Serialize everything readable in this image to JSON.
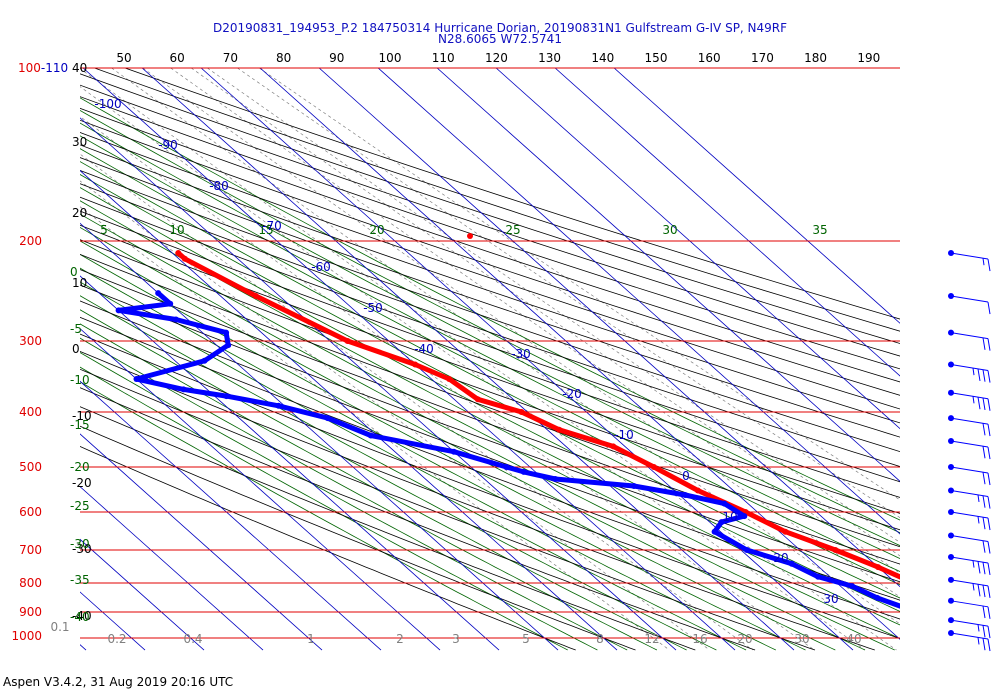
{
  "header": {
    "line1": "D20190831_194953_P.2 184750314 Hurricane Dorian, 20190831N1 Gulfstream G-IV SP, N49RF",
    "line2": "N28.6065 W72.5741"
  },
  "footer": {
    "text": "Aspen V3.4.2, 31 Aug 2019  20:16 UTC"
  },
  "colors": {
    "isobar": "#e00000",
    "isotherm": "#0000c0",
    "dry_adiabat": "#000000",
    "moist_adiabat": "#006400",
    "mixing_ratio": "#808080",
    "temperature": "#ff0000",
    "dewpoint": "#0000ff"
  },
  "chart_data": {
    "type": "skew-t",
    "pressure_levels": [
      100,
      200,
      300,
      400,
      500,
      600,
      700,
      800,
      900,
      1000
    ],
    "pressure_tick_labels": [
      "100-110",
      "200",
      "300",
      "400",
      "500",
      "600",
      "700",
      "800",
      "900",
      "1000"
    ],
    "theta_labels": [
      "50",
      "60",
      "70",
      "80",
      "90",
      "100",
      "110",
      "120",
      "130",
      "140",
      "150",
      "160",
      "170",
      "180",
      "190"
    ],
    "isotherm_labels": [
      "-100",
      "-90",
      "-80",
      "-70",
      "-60",
      "-50",
      "-40",
      "-30",
      "-20",
      "-10",
      "0",
      "10",
      "20",
      "30"
    ],
    "theta_e_labels": [
      "5",
      "10",
      "15",
      "20",
      "25",
      "30",
      "35"
    ],
    "dry_adiabat_side_labels": [
      "40",
      "30",
      "20",
      "10",
      "0",
      "-10",
      "-20",
      "-30",
      "-40"
    ],
    "moist_adiabat_side_labels": [
      "0",
      "-5",
      "-10",
      "-15",
      "-20",
      "-25",
      "-30",
      "-35",
      "-40"
    ],
    "mixing_ratio_labels": [
      "0.1",
      "0.2",
      "0.4",
      "1",
      "2",
      "3",
      "5",
      "8",
      "12",
      "16",
      "20",
      "30",
      "40"
    ],
    "temperature_profile": [
      {
        "p": 210,
        "t": -49
      },
      {
        "p": 215,
        "t": -49
      },
      {
        "p": 250,
        "t": -44
      },
      {
        "p": 300,
        "t": -37
      },
      {
        "p": 330,
        "t": -30
      },
      {
        "p": 350,
        "t": -27
      },
      {
        "p": 380,
        "t": -26
      },
      {
        "p": 400,
        "t": -21
      },
      {
        "p": 430,
        "t": -18
      },
      {
        "p": 460,
        "t": -12
      },
      {
        "p": 500,
        "t": -9
      },
      {
        "p": 550,
        "t": -6
      },
      {
        "p": 600,
        "t": -2
      },
      {
        "p": 650,
        "t": 1
      },
      {
        "p": 700,
        "t": 6
      },
      {
        "p": 750,
        "t": 10
      },
      {
        "p": 800,
        "t": 13
      },
      {
        "p": 850,
        "t": 17
      },
      {
        "p": 900,
        "t": 20
      },
      {
        "p": 950,
        "t": 24
      },
      {
        "p": 1000,
        "t": 27
      },
      {
        "p": 1012,
        "t": 29
      }
    ],
    "dewpoint_profile": [
      {
        "p": 247,
        "td": -60
      },
      {
        "p": 258,
        "td": -60
      },
      {
        "p": 265,
        "td": -70
      },
      {
        "p": 275,
        "td": -62
      },
      {
        "p": 290,
        "td": -56
      },
      {
        "p": 305,
        "td": -58
      },
      {
        "p": 325,
        "td": -65
      },
      {
        "p": 350,
        "td": -80
      },
      {
        "p": 365,
        "td": -74
      },
      {
        "p": 375,
        "td": -68
      },
      {
        "p": 390,
        "td": -61
      },
      {
        "p": 410,
        "td": -55
      },
      {
        "p": 440,
        "td": -51
      },
      {
        "p": 470,
        "td": -40
      },
      {
        "p": 500,
        "td": -34
      },
      {
        "p": 510,
        "td": -32
      },
      {
        "p": 525,
        "td": -28
      },
      {
        "p": 540,
        "td": -16
      },
      {
        "p": 560,
        "td": -9
      },
      {
        "p": 580,
        "td": -4
      },
      {
        "p": 610,
        "td": -3
      },
      {
        "p": 625,
        "td": -8
      },
      {
        "p": 650,
        "td": -11
      },
      {
        "p": 700,
        "td": -9
      },
      {
        "p": 740,
        "td": -4
      },
      {
        "p": 780,
        "td": -2
      },
      {
        "p": 810,
        "td": 2
      },
      {
        "p": 850,
        "td": 4
      },
      {
        "p": 900,
        "td": 8
      },
      {
        "p": 950,
        "td": 13
      },
      {
        "p": 980,
        "td": 20
      },
      {
        "p": 1000,
        "td": 19
      },
      {
        "p": 1008,
        "td": 17
      }
    ],
    "wind_barbs": [
      {
        "p": 210,
        "kt": 5
      },
      {
        "p": 250,
        "kt": 10
      },
      {
        "p": 290,
        "kt": 20
      },
      {
        "p": 330,
        "kt": 25
      },
      {
        "p": 370,
        "kt": 25
      },
      {
        "p": 410,
        "kt": 20
      },
      {
        "p": 450,
        "kt": 20
      },
      {
        "p": 500,
        "kt": 20
      },
      {
        "p": 550,
        "kt": 15
      },
      {
        "p": 600,
        "kt": 15
      },
      {
        "p": 660,
        "kt": 20
      },
      {
        "p": 720,
        "kt": 25
      },
      {
        "p": 790,
        "kt": 25
      },
      {
        "p": 860,
        "kt": 20
      },
      {
        "p": 930,
        "kt": 15
      },
      {
        "p": 980,
        "kt": 15
      }
    ]
  }
}
